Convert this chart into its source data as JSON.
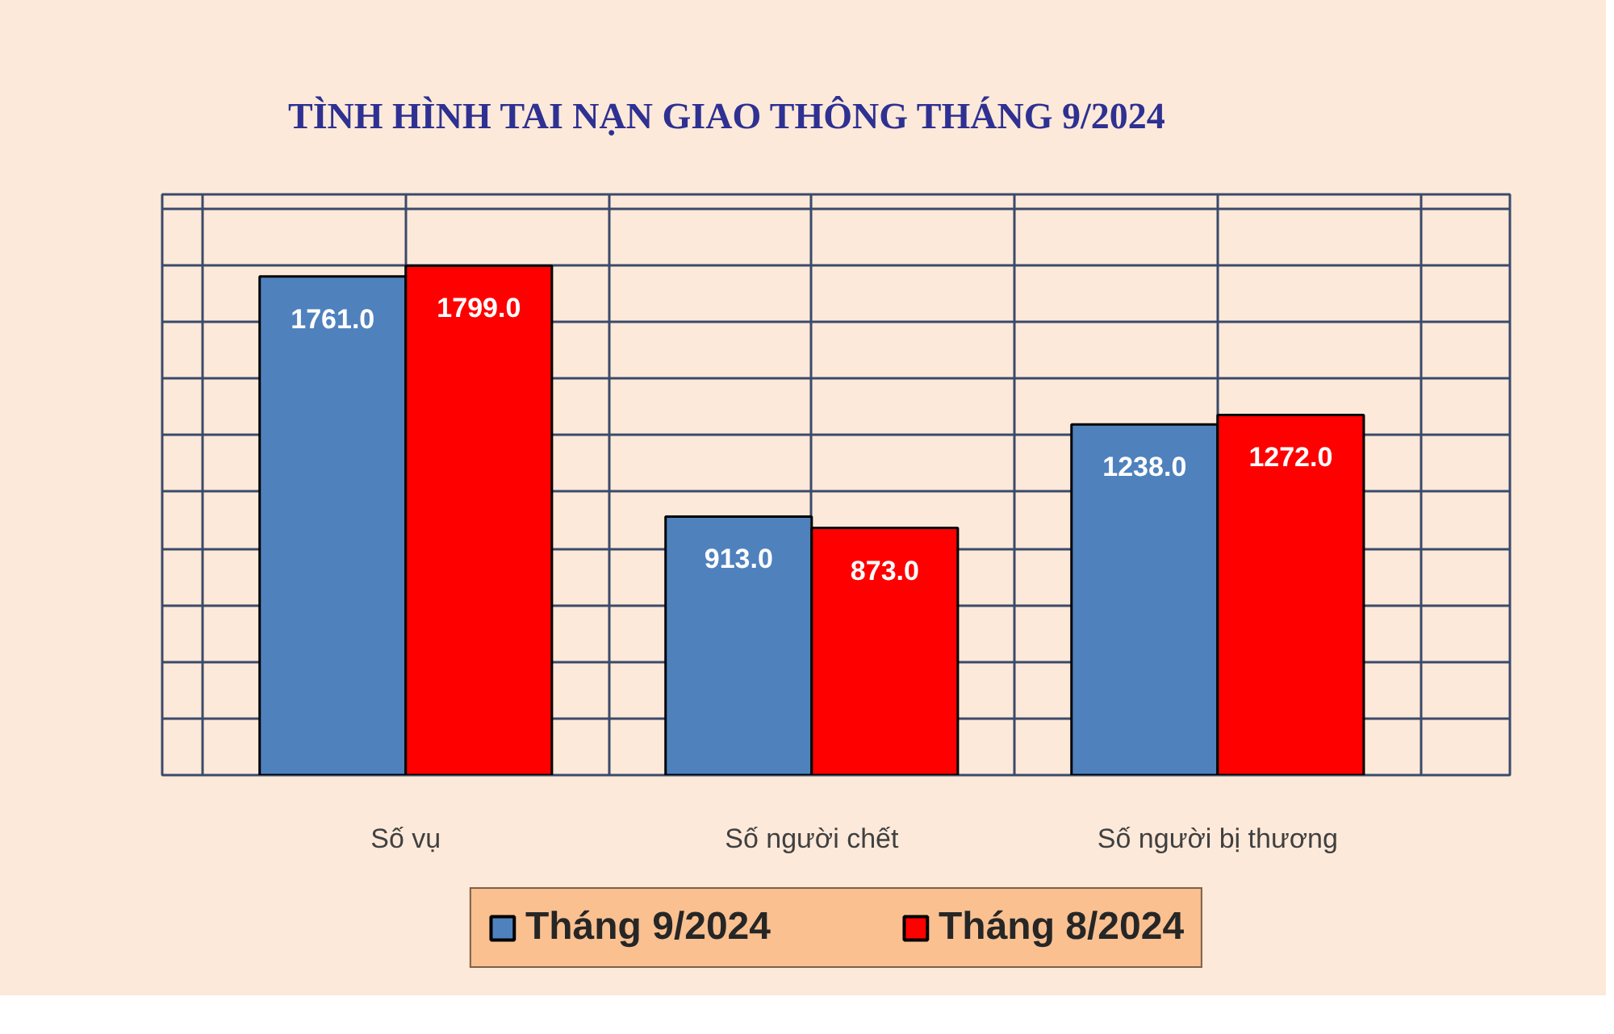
{
  "chart_data": {
    "type": "bar",
    "title": "TÌNH HÌNH TAI NẠN GIAO THÔNG THÁNG 9/2024",
    "categories": [
      "Số vụ",
      "Số người chết",
      "Số người bị thương"
    ],
    "series": [
      {
        "name": "Tháng 9/2024",
        "color": "#4f81bd",
        "values": [
          1761,
          913,
          1238
        ],
        "value_labels": [
          "1761.0",
          "913.0",
          "1238.0"
        ]
      },
      {
        "name": "Tháng 8/2024",
        "color": "#ff0000",
        "values": [
          1799,
          873,
          1272
        ],
        "value_labels": [
          "1799.0",
          "873.0",
          "1272.0"
        ]
      }
    ],
    "grid": true,
    "legend": "bottom",
    "tick_labels": "x"
  }
}
